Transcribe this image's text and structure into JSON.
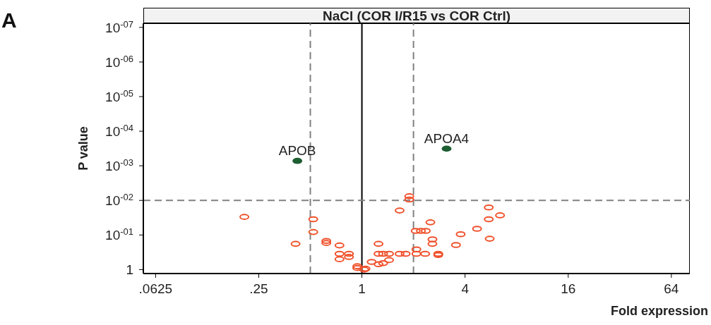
{
  "chart_data": {
    "type": "scatter",
    "title": "NaCl (COR I/R15 vs COR Ctrl)",
    "xlabel": "Fold expression",
    "ylabel": "P value",
    "annotations": [
      "A",
      {
        "text": "APOB",
        "x": 0.42,
        "y": 0.00072
      },
      {
        "text": "APOA4",
        "x": 3.12,
        "y": 0.00032
      }
    ],
    "xlim": [
      0.053,
      82
    ],
    "xticks": [
      {
        "value": 0.0625,
        "label": ".0625"
      },
      {
        "value": 0.25,
        "label": ".25"
      },
      1,
      4,
      16,
      64
    ],
    "ylim": [
      1.3,
      7.6e-08
    ],
    "yticks": [
      1,
      {
        "value": 0.1,
        "label": "10$^{-01}$"
      },
      {
        "value": 0.01,
        "label": "10$^{-02}$"
      },
      {
        "value": 0.001,
        "label": "10$^{-03}$"
      },
      {
        "value": 0.0001,
        "label": "10$^{-04}$"
      },
      {
        "value": 1e-05,
        "label": "10$^{-05}$"
      },
      {
        "value": 1e-06,
        "label": "10$^{-06}$"
      },
      {
        "value": 1e-07,
        "label": "10$^{-07}$"
      }
    ],
    "log": "xy",
    "grid": false,
    "legend": false,
    "marker": "circle",
    "ref_lines": [
      {
        "axis": "x",
        "value": 0.5,
        "color": "#808080",
        "line_style": "dashed"
      },
      {
        "axis": "x",
        "value": 1,
        "color": "#000000",
        "line_style": "solid"
      },
      {
        "axis": "x",
        "value": 2,
        "color": "#808080",
        "line_style": "dashed"
      },
      {
        "axis": "y",
        "value": 0.01,
        "color": "#808080",
        "line_style": "dashed"
      }
    ],
    "series": [
      {
        "color": "#1e5e33",
        "x": [
          0.42,
          3.12
        ],
        "values": [
          0.00072,
          0.00032
        ]
      },
      {
        "color": "#f0502a",
        "x": [
          0.206,
          0.52,
          0.52,
          0.41,
          0.62,
          0.62,
          0.74,
          0.74,
          0.84,
          0.74,
          0.84,
          0.94,
          0.94,
          1.05,
          1.03,
          1.14,
          1.25,
          1.25,
          1.25,
          1.33,
          1.44,
          1.44,
          1.33,
          1.66,
          1.8,
          1.66,
          1.89,
          1.89,
          2.06,
          2.36,
          2.21,
          2.51,
          2.58,
          2.58,
          2.08,
          2.08,
          2.34,
          2.79,
          2.79,
          3.54,
          3.77,
          4.7,
          5.5,
          5.5,
          6.4,
          5.57
        ],
        "values": [
          0.03,
          0.035,
          0.082,
          0.18,
          0.148,
          0.17,
          0.2,
          0.35,
          0.35,
          0.5,
          0.43,
          0.8,
          0.9,
          0.94,
          1.0,
          0.6,
          0.7,
          0.18,
          0.35,
          0.35,
          0.35,
          0.53,
          0.65,
          0.35,
          0.35,
          0.0196,
          0.0076,
          0.0094,
          0.076,
          0.076,
          0.076,
          0.043,
          0.134,
          0.18,
          0.26,
          0.35,
          0.35,
          0.35,
          0.38,
          0.195,
          0.095,
          0.066,
          0.016,
          0.035,
          0.027,
          0.128
        ]
      }
    ]
  }
}
